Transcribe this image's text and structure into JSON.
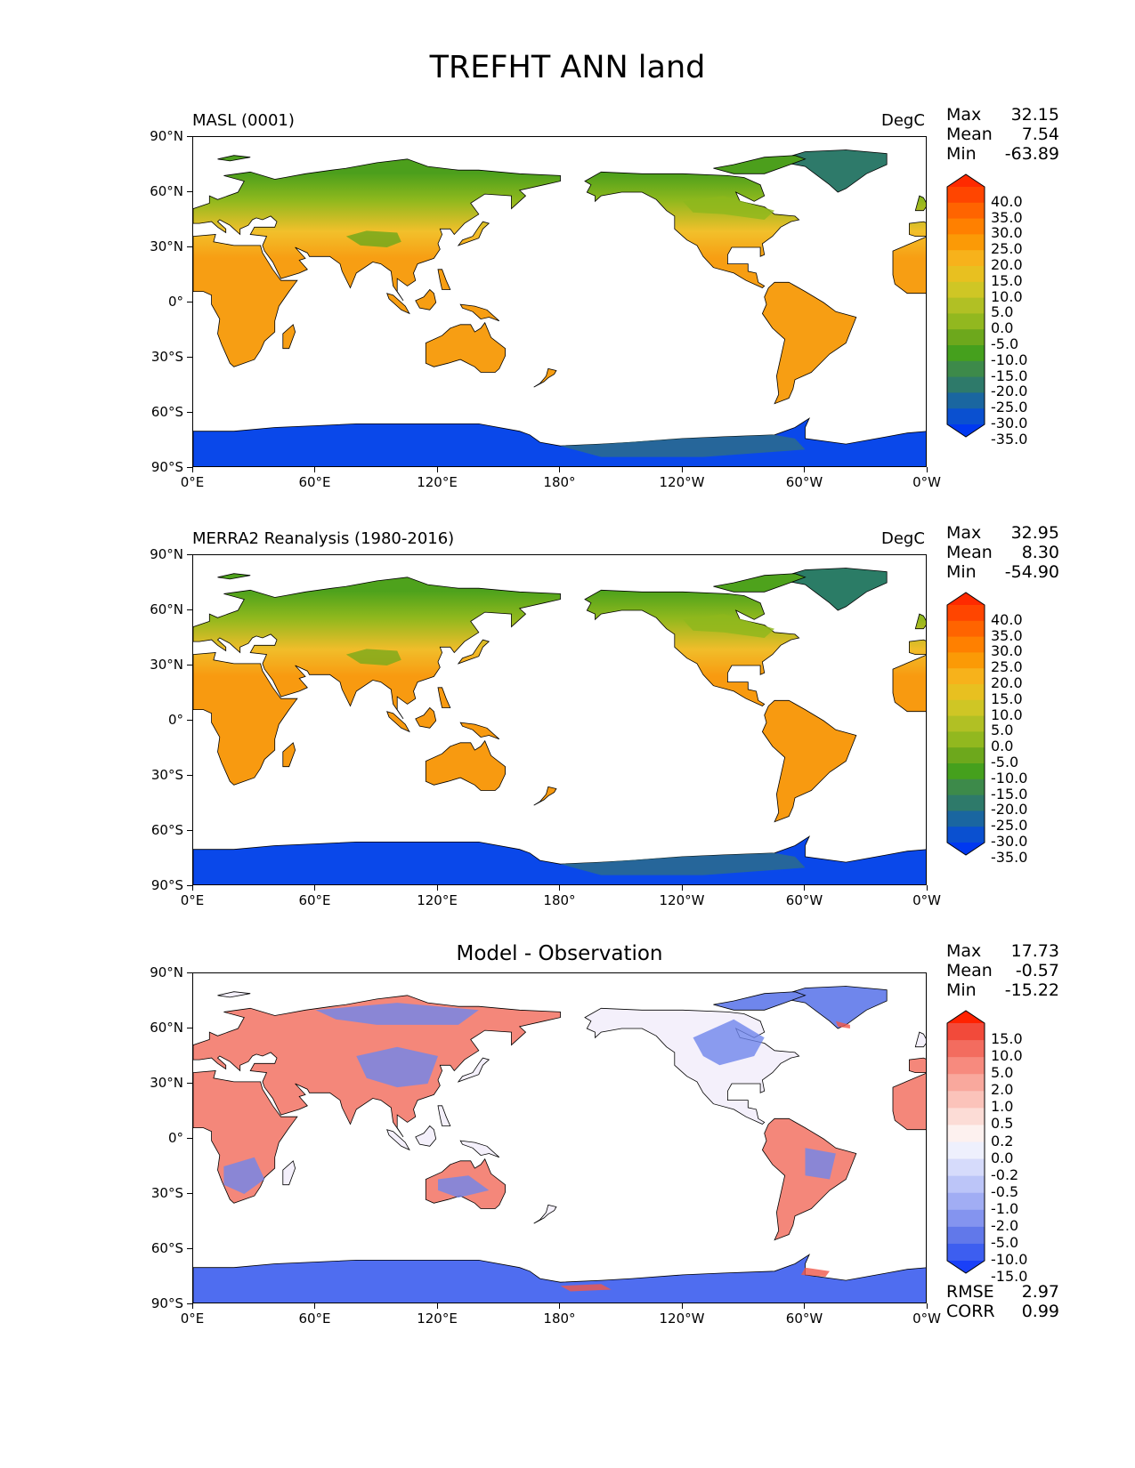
{
  "title": "TREFHT ANN land",
  "x_ticks": [
    "0°E",
    "60°E",
    "120°E",
    "180°",
    "120°W",
    "60°W",
    "0°W"
  ],
  "y_ticks": [
    "90°N",
    "60°N",
    "30°N",
    "0°",
    "30°S",
    "60°S",
    "90°S"
  ],
  "panels": [
    {
      "label": "MASL (0001)",
      "units": "DegC",
      "stats": {
        "max_label": "Max",
        "max": "32.15",
        "mean_label": "Mean",
        "mean": "7.54",
        "min_label": "Min",
        "min": "-63.89"
      },
      "colorbar": {
        "labels": [
          "40.0",
          "35.0",
          "30.0",
          "25.0",
          "20.0",
          "15.0",
          "10.0",
          "5.0",
          "0.0",
          "-5.0",
          "-10.0",
          "-15.0",
          "-20.0",
          "-25.0",
          "-30.0",
          "-35.0"
        ],
        "colors": [
          "#ff2a00",
          "#ff4500",
          "#ff6400",
          "#ff8000",
          "#fb9a06",
          "#f7b21b",
          "#e8c020",
          "#cfc625",
          "#b1c024",
          "#92b81f",
          "#6da81c",
          "#45a01d",
          "#3d8a4a",
          "#2e7a6a",
          "#1a66a0",
          "#0a50d0",
          "#0038f0"
        ]
      }
    },
    {
      "label": "MERRA2 Reanalysis (1980-2016)",
      "units": "DegC",
      "stats": {
        "max_label": "Max",
        "max": "32.95",
        "mean_label": "Mean",
        "mean": "8.30",
        "min_label": "Min",
        "min": "-54.90"
      },
      "colorbar": {
        "labels": [
          "40.0",
          "35.0",
          "30.0",
          "25.0",
          "20.0",
          "15.0",
          "10.0",
          "5.0",
          "0.0",
          "-5.0",
          "-10.0",
          "-15.0",
          "-20.0",
          "-25.0",
          "-30.0",
          "-35.0"
        ],
        "colors": [
          "#ff2a00",
          "#ff4500",
          "#ff6400",
          "#ff8000",
          "#fb9a06",
          "#f7b21b",
          "#e8c020",
          "#cfc625",
          "#b1c024",
          "#92b81f",
          "#6da81c",
          "#45a01d",
          "#3d8a4a",
          "#2e7a6a",
          "#1a66a0",
          "#0a50d0",
          "#0038f0"
        ]
      }
    },
    {
      "title": "Model - Observation",
      "stats": {
        "max_label": "Max",
        "max": "17.73",
        "mean_label": "Mean",
        "mean": "-0.57",
        "min_label": "Min",
        "min": "-15.22"
      },
      "extra_stats": {
        "rmse_label": "RMSE",
        "rmse": "2.97",
        "corr_label": "CORR",
        "corr": "0.99"
      },
      "colorbar": {
        "labels": [
          "15.0",
          "10.0",
          "5.0",
          "2.0",
          "1.0",
          "0.5",
          "0.2",
          "0.0",
          "-0.2",
          "-0.5",
          "-1.0",
          "-2.0",
          "-5.0",
          "-10.0",
          "-15.0"
        ],
        "colors": [
          "#ff2200",
          "#f24a3a",
          "#f36c5f",
          "#f78a7e",
          "#f9a89d",
          "#fbc3ba",
          "#fcdcd6",
          "#fdf1ef",
          "#eef0fd",
          "#d6dbfb",
          "#bcc5f8",
          "#a1adf4",
          "#8494ef",
          "#6178ea",
          "#3d5ef0",
          "#1a40f8"
        ]
      }
    }
  ],
  "map_colors": {
    "ocean": "#ffffff",
    "coast": "#000000",
    "panel1": {
      "tropics": "#f79e13",
      "midlat": "#f2c02b",
      "boreal": "#8db81d",
      "arctic": "#4c9f1c",
      "tibet": "#6da81c",
      "greenland": "#2e7a6a",
      "antarctica": "#0a48ea",
      "west_antarctica": "#2d6e86"
    },
    "panel2": {
      "tropics": "#f89a10",
      "midlat": "#f1bd2a",
      "boreal": "#8fb81d",
      "arctic": "#4ea21c",
      "tibet": "#79aa1c",
      "greenland": "#2b7c66",
      "antarctica": "#0a48ea",
      "west_antarctica": "#2d6e86"
    },
    "panel3": {
      "warm": "#f4877a",
      "cool": "#6f86ec",
      "neutral": "#f4f0fb",
      "antarctica": "#4f6df0",
      "greenland": "#6f86ec",
      "warm_spot": "#f0574a"
    }
  }
}
